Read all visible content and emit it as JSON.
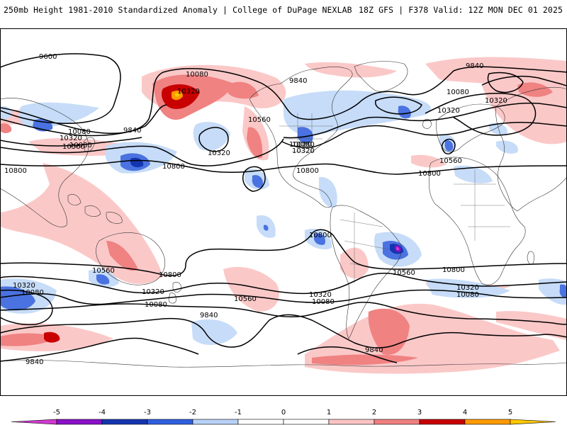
{
  "header": {
    "left": "250mb Height 1981-2010 Standardized Anomaly | College of DuPage NEXLAB",
    "right": "18Z GFS | F378 Valid: 12Z MON DEC 01 2025"
  },
  "contour_labels": [
    {
      "text": "9600"
    },
    {
      "text": "10080"
    },
    {
      "text": "10320"
    },
    {
      "text": "9840"
    },
    {
      "text": "10080"
    },
    {
      "text": "10320"
    },
    {
      "text": "9840"
    },
    {
      "text": "10560"
    },
    {
      "text": "10080"
    },
    {
      "text": "10320"
    },
    {
      "text": "9840"
    },
    {
      "text": "10080"
    },
    {
      "text": "10320"
    },
    {
      "text": "10560"
    },
    {
      "text": "10800"
    },
    {
      "text": "10800"
    },
    {
      "text": "10320"
    },
    {
      "text": "10800"
    },
    {
      "text": "10560"
    },
    {
      "text": "10800"
    },
    {
      "text": "10080"
    },
    {
      "text": "10320"
    },
    {
      "text": "10560"
    },
    {
      "text": "10800"
    },
    {
      "text": "10800"
    },
    {
      "text": "10320"
    },
    {
      "text": "10080"
    },
    {
      "text": "10560"
    },
    {
      "text": "10080"
    },
    {
      "text": "10320"
    },
    {
      "text": "10560"
    },
    {
      "text": "10320"
    },
    {
      "text": "10080"
    },
    {
      "text": "10080"
    },
    {
      "text": "9840"
    },
    {
      "text": "10320"
    },
    {
      "text": "10080"
    },
    {
      "text": "9840"
    },
    {
      "text": "9840"
    },
    {
      "text": "10800"
    }
  ],
  "legend": {
    "ticks": [
      "-5",
      "-4",
      "-3",
      "-2",
      "-1",
      "0",
      "1",
      "2",
      "3",
      "4",
      "5"
    ],
    "colors": [
      "#d03ad0",
      "#8a10c8",
      "#1535b0",
      "#3060e0",
      "#b8d0f6",
      "#ffffff",
      "#ffffff",
      "#fbc4c4",
      "#f08080",
      "#c80000",
      "#ff9a00",
      "#ffc800"
    ]
  }
}
